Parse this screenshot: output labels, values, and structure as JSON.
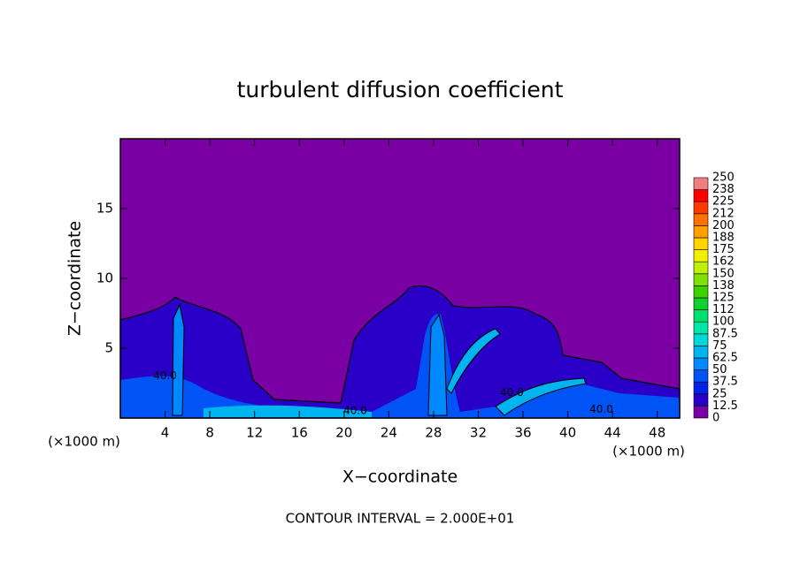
{
  "chart_data": {
    "type": "contour",
    "title": "turbulent diffusion coefficient",
    "xlabel": "X−coordinate",
    "ylabel": "Z−coordinate",
    "xunit": "(×1000 m)",
    "yunit": "(×1000 m)",
    "xlim": [
      0,
      50
    ],
    "xticks": [
      4,
      8,
      12,
      16,
      20,
      24,
      28,
      32,
      36,
      40,
      44,
      48
    ],
    "ylim": [
      0,
      20
    ],
    "yticks": [
      5,
      10,
      15
    ],
    "levels": [
      0,
      12.5,
      25,
      37.5,
      50,
      62.5,
      75,
      87.5,
      100,
      112,
      125,
      138,
      150,
      162,
      175,
      188,
      200,
      212,
      225,
      238,
      250
    ],
    "colors": [
      "#7b00a3",
      "#2a00c8",
      "#0024e6",
      "#0054f5",
      "#0088ff",
      "#00b4f0",
      "#00d8d8",
      "#00e8a8",
      "#00e070",
      "#10d030",
      "#40d000",
      "#80e000",
      "#c0f000",
      "#f0f000",
      "#ffd200",
      "#ffa000",
      "#ff7000",
      "#ff3800",
      "#ff0000",
      "#f08080"
    ],
    "contour_labels": [
      {
        "x": 4,
        "y": 3,
        "label": "40.0"
      },
      {
        "x": 21,
        "y": 0.5,
        "label": "40.0"
      },
      {
        "x": 35,
        "y": 1.8,
        "label": "40.0"
      },
      {
        "x": 43,
        "y": 0.6,
        "label": "40.0"
      }
    ],
    "footer": "CONTOUR INTERVAL = 2.000E+01"
  }
}
